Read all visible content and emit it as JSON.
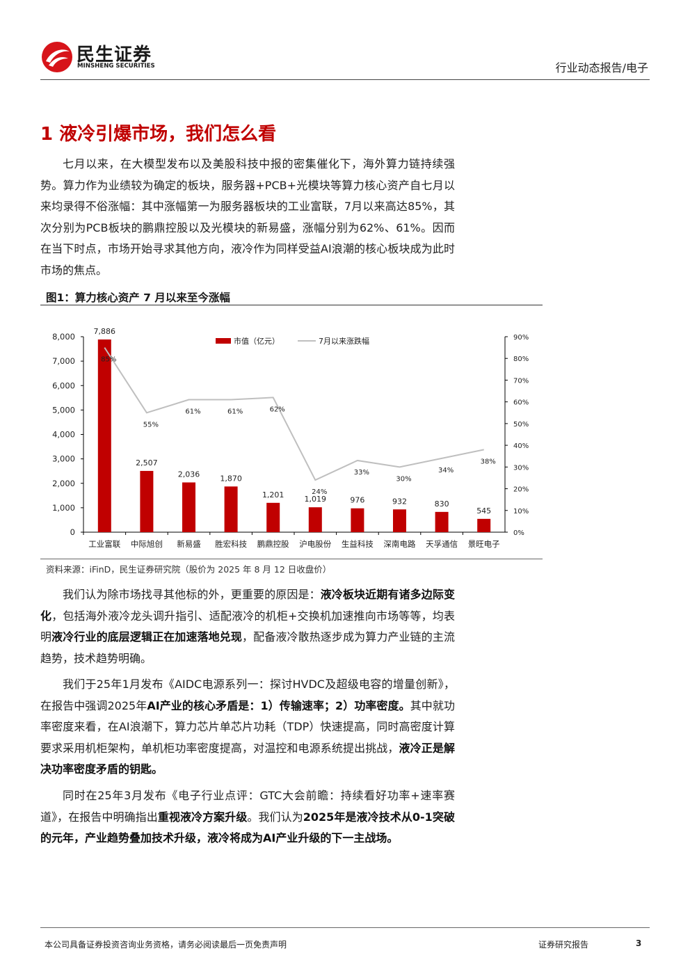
{
  "header": {
    "logo_name": "民生证券",
    "logo_sub": "MINSHENG SECURITIES",
    "report_type": "行业动态报告/电子"
  },
  "section": {
    "title": "1 液冷引爆市场，我们怎么看"
  },
  "paragraphs": {
    "p1": "七月以来，在大模型发布以及美股科技中报的密集催化下，海外算力链持续强势。算力作为业绩较为确定的板块，服务器+PCB+光模块等算力核心资产自七月以来均录得不俗涨幅：其中涨幅第一为服务器板块的工业富联，7月以来高达85%，其次分别为PCB板块的鹏鼎控股以及光模块的新易盛，涨幅分别为62%、61%。因而在当下时点，市场开始寻求其他方向，液冷作为同样受益AI浪潮的核心板块成为此时市场的焦点。",
    "p2": {
      "t1": "我们认为除市场找寻其他标的外，更重要的原因是：",
      "b1": "液冷板块近期有诸多边际变化",
      "t2": "，包括海外液冷龙头调升指引、适配液冷的机柜+交换机加速推向市场等等，均表明",
      "b2": "液冷行业的底层逻辑正在加速落地兑现",
      "t3": "，配备液冷散热逐步成为算力产业链的主流趋势，技术趋势明确。"
    },
    "p3": {
      "t1": "我们于25年1月发布《AIDC电源系列一：探讨HVDC及超级电容的增量创新》，在报告中强调2025年",
      "b1": "AI产业的核心矛盾是：1）传输速率；2）功率密度。",
      "t2": "其中就功率密度来看，在AI浪潮下，算力芯片单芯片功耗（TDP）快速提高，同时高密度计算要求采用机柜架构，单机柜功率密度提高，对温控和电源系统提出挑战，",
      "b2": "液冷正是解决功率密度矛盾的钥匙。"
    },
    "p4": {
      "t1": "同时在25年3月发布《电子行业点评：GTC大会前瞻：持续看好功率+速率赛道》，在报告中明确指出",
      "b1": "重视液冷方案升级",
      "t2": "。我们认为",
      "b2": "2025年是液冷技术从0-1突破的元年，产业趋势叠加技术升级，液冷将成为AI产业升级的下一主战场。"
    }
  },
  "figure": {
    "title": "图1：算力核心资产 7 月以来至今涨幅",
    "source": "资料来源：iFinD，民生证券研究院（股价为 2025 年 8 月 12 日收盘价）"
  },
  "chart_data": {
    "type": "bar",
    "title": "",
    "categories": [
      "工业富联",
      "中际旭创",
      "新易盛",
      "胜宏科技",
      "鹏鼎控股",
      "沪电股份",
      "生益科技",
      "深南电路",
      "天孚通信",
      "景旺电子"
    ],
    "series": [
      {
        "name": "市值（亿元）",
        "type": "bar",
        "axis": "left",
        "color": "#c00000",
        "values": [
          7886,
          2507,
          2036,
          1870,
          1201,
          1019,
          976,
          932,
          830,
          545
        ],
        "labels": [
          "7,886",
          "2,507",
          "2,036",
          "1,870",
          "1,201",
          "1,019",
          "976",
          "932",
          "830",
          "545"
        ]
      },
      {
        "name": "7月以来涨跌幅",
        "type": "line",
        "axis": "right",
        "color": "#bfbfbf",
        "values": [
          85,
          55,
          61,
          61,
          62,
          24,
          33,
          30,
          34,
          38
        ],
        "labels": [
          "85%",
          "55%",
          "61%",
          "61%",
          "62%",
          "24%",
          "33%",
          "30%",
          "34%",
          "38%"
        ]
      }
    ],
    "ylim_left": [
      0,
      8000
    ],
    "ylim_right": [
      0,
      90
    ],
    "yticks_left": [
      "0",
      "1,000",
      "2,000",
      "3,000",
      "4,000",
      "5,000",
      "6,000",
      "7,000",
      "8,000"
    ],
    "yticks_right": [
      "0%",
      "10%",
      "20%",
      "30%",
      "40%",
      "50%",
      "60%",
      "70%",
      "80%",
      "90%"
    ],
    "legend": "top-center",
    "grid": false
  },
  "footer": {
    "disclaimer": "本公司具备证券投资咨询业务资格，请务必阅读最后一页免责声明",
    "doc_type": "证券研究报告",
    "page": "3"
  }
}
